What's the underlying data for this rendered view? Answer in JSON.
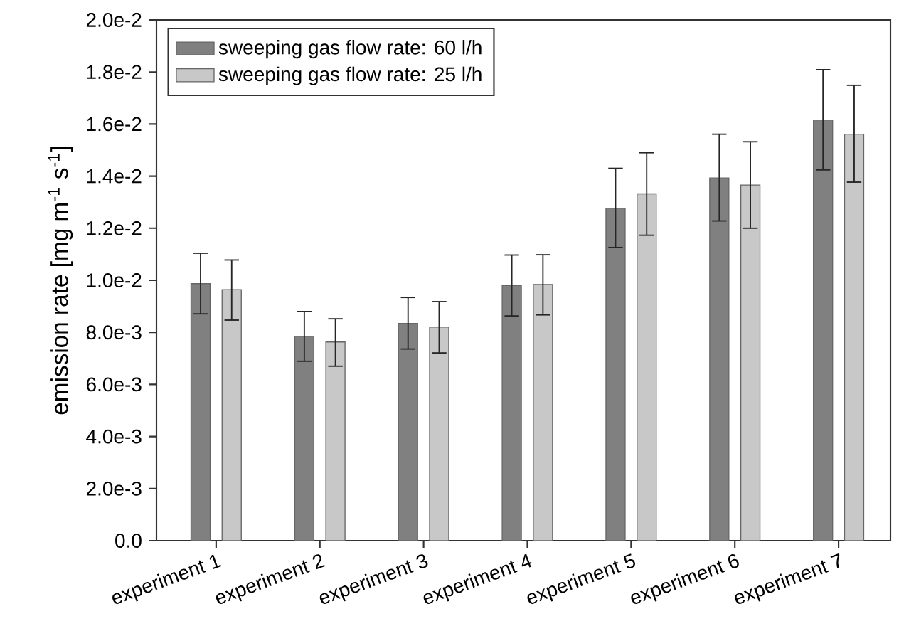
{
  "chart_data": {
    "type": "bar",
    "ylabel": "emission rate [mg m$^{-1}$ s$^{-1}$]",
    "categories": [
      "experiment 1",
      "experiment 2",
      "experiment 3",
      "experiment 4",
      "experiment 5",
      "experiment 6",
      "experiment 7"
    ],
    "series": [
      {
        "name": "sweeping gas flow rate: 60 l/h",
        "color": "#808080",
        "values": [
          0.00987,
          0.00785,
          0.00834,
          0.0098,
          0.01277,
          0.01393,
          0.01616
        ],
        "errors": [
          [
            0.00871,
            0.01104
          ],
          [
            0.00689,
            0.0088
          ],
          [
            0.00736,
            0.00934
          ],
          [
            0.00863,
            0.01097
          ],
          [
            0.01126,
            0.0143
          ],
          [
            0.01228,
            0.01561
          ],
          [
            0.01424,
            0.01809
          ]
        ]
      },
      {
        "name": "sweeping gas flow rate: 25 l/h",
        "color": "#c8c8c8",
        "values": [
          0.00964,
          0.00763,
          0.0082,
          0.00984,
          0.01332,
          0.01366,
          0.01561
        ],
        "errors": [
          [
            0.00847,
            0.01078
          ],
          [
            0.0067,
            0.00852
          ],
          [
            0.00721,
            0.00918
          ],
          [
            0.00867,
            0.01098
          ],
          [
            0.01173,
            0.0149
          ],
          [
            0.012,
            0.01532
          ],
          [
            0.01377,
            0.01749
          ]
        ]
      }
    ],
    "ylim": [
      0,
      0.02
    ],
    "yticks": [
      {
        "value": 0,
        "label": "0.0"
      },
      {
        "value": 0.002,
        "label": "2.0e-3"
      },
      {
        "value": 0.004,
        "label": "4.0e-3"
      },
      {
        "value": 0.006,
        "label": "6.0e-3"
      },
      {
        "value": 0.008,
        "label": "8.0e-3"
      },
      {
        "value": 0.01,
        "label": "1.0e-2"
      },
      {
        "value": 0.012,
        "label": "1.2e-2"
      },
      {
        "value": 0.014,
        "label": "1.4e-2"
      },
      {
        "value": 0.016,
        "label": "1.6e-2"
      },
      {
        "value": 0.018,
        "label": "1.8e-2"
      },
      {
        "value": 0.02,
        "label": "2.0e-2"
      }
    ],
    "grid": false,
    "legend": "top left"
  }
}
